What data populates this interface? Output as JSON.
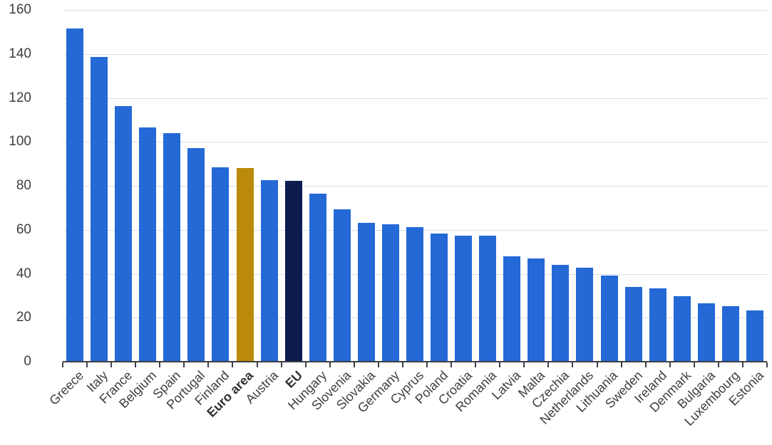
{
  "chart_data": {
    "type": "bar",
    "title": "",
    "xlabel": "",
    "ylabel": "",
    "categories": [
      "Greece",
      "Italy",
      "France",
      "Belgium",
      "Spain",
      "Portugal",
      "Finland",
      "Euro area",
      "Austria",
      "EU",
      "Hungary",
      "Slovenia",
      "Slovakia",
      "Germany",
      "Cyprus",
      "Poland",
      "Croatia",
      "Romania",
      "Latvia",
      "Malta",
      "Czechia",
      "Netherlands",
      "Lithuania",
      "Sweden",
      "Ireland",
      "Denmark",
      "Bulgaria",
      "Luxembourg",
      "Estonia"
    ],
    "values": [
      151.6,
      138.6,
      116.3,
      106.4,
      103.9,
      97.1,
      88.4,
      88.2,
      82.6,
      82.3,
      76.3,
      69.4,
      63.2,
      62.5,
      61.2,
      58.2,
      57.4,
      57.2,
      48.0,
      47.0,
      43.9,
      42.8,
      39.2,
      34.1,
      33.3,
      29.8,
      26.5,
      25.2,
      23.4
    ],
    "bold_categories": [
      "Euro area",
      "EU"
    ],
    "y_tick_labels": [
      "0",
      "20",
      "40",
      "60",
      "80",
      "100",
      "120",
      "140",
      "160"
    ],
    "ylim": [
      0,
      160
    ],
    "ytick_step": 20,
    "grid": "horizontal-only",
    "legend": "none",
    "bar_orientation": "vertical",
    "label_rotation_deg": 45,
    "colors": {
      "default_bar": "#2469d6",
      "Euro area": "#bb8a0b",
      "EU": "#0e1b4e",
      "gridline": "#dadde5",
      "axis": "#3f4043",
      "text": "#3c4043",
      "background": "#ffffff"
    }
  }
}
